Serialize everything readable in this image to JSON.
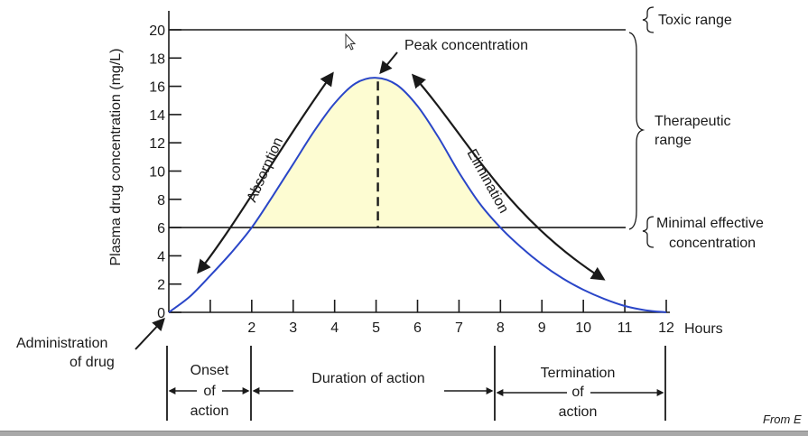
{
  "chart_data": {
    "type": "line",
    "title": "",
    "ylabel": "Plasma drug concentration (mg/L)",
    "xlabel": "",
    "x_unit_label": "Hours",
    "xlim": [
      0,
      12
    ],
    "ylim": [
      0,
      20
    ],
    "x_ticks": [
      0,
      1,
      2,
      3,
      4,
      5,
      6,
      7,
      8,
      9,
      10,
      11,
      12
    ],
    "x_tick_labels": [
      "",
      "",
      "2",
      "3",
      "4",
      "5",
      "6",
      "7",
      "8",
      "9",
      "10",
      "11",
      "12"
    ],
    "y_ticks": [
      0,
      2,
      4,
      6,
      8,
      10,
      12,
      14,
      16,
      18,
      20
    ],
    "y_tick_labels": [
      "0",
      "2",
      "4",
      "6",
      "8",
      "10",
      "12",
      "14",
      "16",
      "18",
      "20"
    ],
    "series": [
      {
        "name": "",
        "color": "#2a46c8",
        "x": [
          0,
          0.5,
          1,
          1.5,
          2,
          2.5,
          3,
          3.5,
          4,
          4.5,
          5,
          5.5,
          6,
          6.5,
          7,
          7.5,
          8,
          8.5,
          9,
          9.5,
          10,
          10.5,
          11,
          11.5,
          12
        ],
        "y": [
          0,
          1.1,
          2.6,
          4.2,
          6.0,
          8.2,
          10.5,
          12.8,
          14.8,
          16.2,
          16.6,
          16.1,
          14.6,
          12.4,
          9.9,
          7.7,
          6.0,
          4.6,
          3.4,
          2.4,
          1.6,
          0.95,
          0.45,
          0.15,
          0
        ]
      }
    ],
    "peak": {
      "x": 5,
      "y": 16.6
    },
    "toxic_level": 20,
    "minimal_effective_level": 6,
    "shaded_region": {
      "from_x": 2,
      "to_x": 8,
      "color": "#fdfcd2"
    },
    "annotations": {
      "toxic": "Toxic range",
      "therapeutic_line1": "Therapeutic",
      "therapeutic_line2": "range",
      "mec_line1": "Minimal effective",
      "mec_line2": "concentration",
      "peak": "Peak concentration",
      "absorption": "Absorption",
      "elimination": "Elimination",
      "admin_line1": "Administration",
      "admin_line2": "of drug",
      "onset_1": "Onset",
      "onset_2": "of",
      "onset_3": "action",
      "duration": "Duration of action",
      "term_1": "Termination",
      "term_2": "of",
      "term_3": "action"
    },
    "grid": false,
    "legend": "none"
  },
  "credit_text": "From E"
}
